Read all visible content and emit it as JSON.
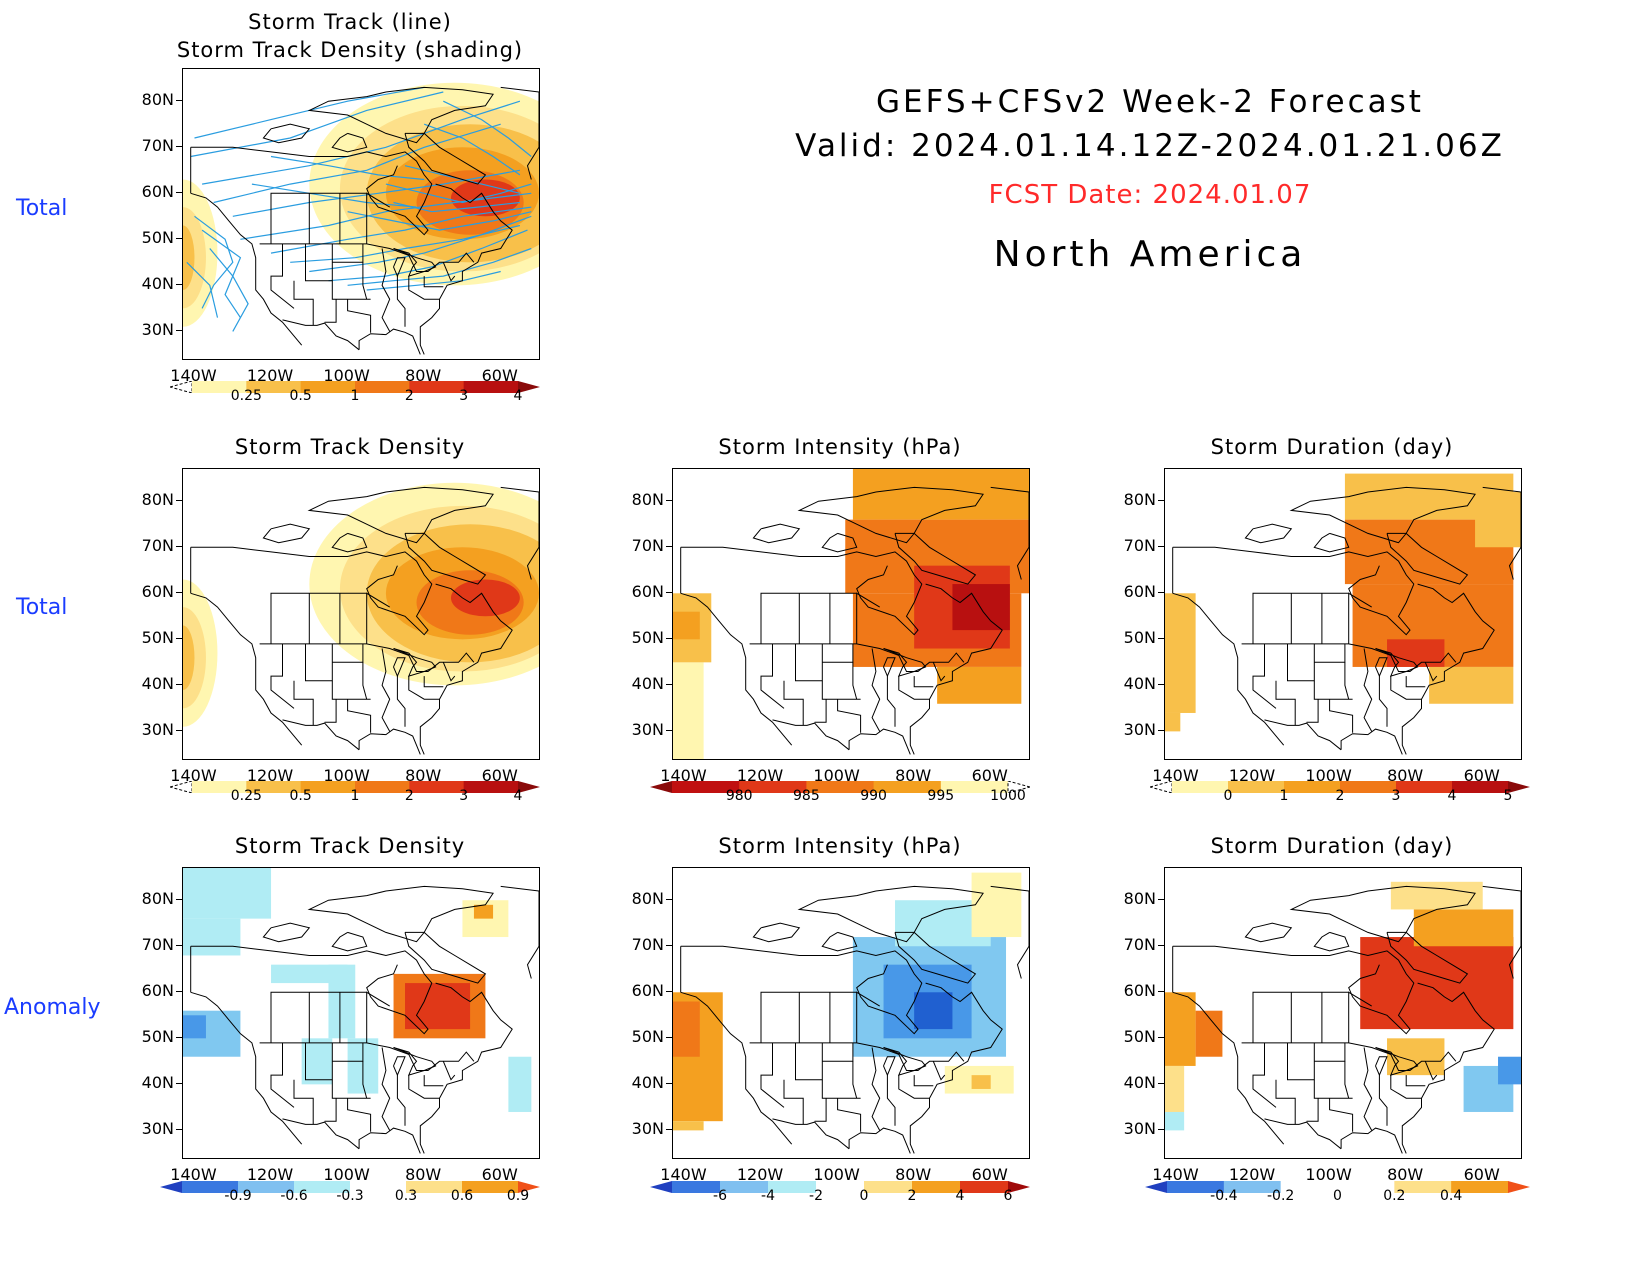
{
  "header": {
    "title": "GEFS+CFSv2 Week-2 Forecast",
    "valid": "Valid: 2024.01.14.12Z-2024.01.21.06Z",
    "fcst_date": "FCST Date: 2024.01.07",
    "region": "North America"
  },
  "row_labels": {
    "r1": "Total",
    "r2": "Total",
    "r3": "Anomaly"
  },
  "axes": {
    "lat_ticks": [
      "80N",
      "70N",
      "60N",
      "50N",
      "40N",
      "30N"
    ],
    "lon_ticks": [
      "140W",
      "120W",
      "100W",
      "80W",
      "60W"
    ]
  },
  "panels": {
    "p1": {
      "title_line1": "Storm Track (line)",
      "title_line2": "Storm Track Density (shading)",
      "cbar_labels": [
        "0.25",
        "0.5",
        "1",
        "2",
        "3",
        "4"
      ]
    },
    "p2": {
      "title": "Storm Track Density",
      "cbar_labels": [
        "0.25",
        "0.5",
        "1",
        "2",
        "3",
        "4"
      ]
    },
    "p3": {
      "title": "Storm Intensity (hPa)",
      "cbar_labels": [
        "980",
        "985",
        "990",
        "995",
        "1000"
      ]
    },
    "p4": {
      "title": "Storm Duration (day)",
      "cbar_labels": [
        "0",
        "1",
        "2",
        "3",
        "4",
        "5"
      ]
    },
    "p5": {
      "title": "Storm Track Density",
      "cbar_labels": [
        "-0.9",
        "-0.6",
        "-0.3",
        "0.3",
        "0.6",
        "0.9"
      ]
    },
    "p6": {
      "title": "Storm Intensity (hPa)",
      "cbar_labels": [
        "-6",
        "-4",
        "-2",
        "0",
        "2",
        "4",
        "6"
      ]
    },
    "p7": {
      "title": "Storm Duration (day)",
      "cbar_labels": [
        "-0.4",
        "-0.2",
        "0",
        "0.2",
        "0.4"
      ]
    }
  },
  "colors": {
    "label_blue": "#1a3cff",
    "fcst_red": "#ff2a2a",
    "track_line": "#2a9de0",
    "warm": [
      "#fff6b0",
      "#fde08a",
      "#f8c04a",
      "#f4a020",
      "#f07818",
      "#e03818",
      "#b81010"
    ],
    "cool": [
      "#b0ecf4",
      "#80c8f0",
      "#4898e8",
      "#2060d0"
    ]
  }
}
